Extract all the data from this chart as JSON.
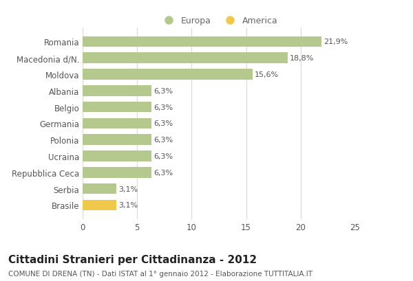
{
  "categories": [
    "Brasile",
    "Serbia",
    "Repubblica Ceca",
    "Ucraina",
    "Polonia",
    "Germania",
    "Belgio",
    "Albania",
    "Moldova",
    "Macedonia d/N.",
    "Romania"
  ],
  "values": [
    3.1,
    3.1,
    6.3,
    6.3,
    6.3,
    6.3,
    6.3,
    6.3,
    15.6,
    18.8,
    21.9
  ],
  "colors": [
    "#f0c84a",
    "#b5c98e",
    "#b5c98e",
    "#b5c98e",
    "#b5c98e",
    "#b5c98e",
    "#b5c98e",
    "#b5c98e",
    "#b5c98e",
    "#b5c98e",
    "#b5c98e"
  ],
  "bar_labels": [
    "3,1%",
    "3,1%",
    "6,3%",
    "6,3%",
    "6,3%",
    "6,3%",
    "6,3%",
    "6,3%",
    "15,6%",
    "18,8%",
    "21,9%"
  ],
  "europa_color": "#b5c98e",
  "america_color": "#f0c84a",
  "legend_europa": "Europa",
  "legend_america": "America",
  "title": "Cittadini Stranieri per Cittadinanza - 2012",
  "subtitle": "COMUNE DI DRENA (TN) - Dati ISTAT al 1° gennaio 2012 - Elaborazione TUTTITALIA.IT",
  "xlim": [
    0,
    25
  ],
  "xticks": [
    0,
    5,
    10,
    15,
    20,
    25
  ],
  "background_color": "#ffffff",
  "grid_color": "#d8d8d8",
  "bar_label_fontsize": 8,
  "tick_label_fontsize": 8.5,
  "title_fontsize": 11,
  "subtitle_fontsize": 7.5
}
